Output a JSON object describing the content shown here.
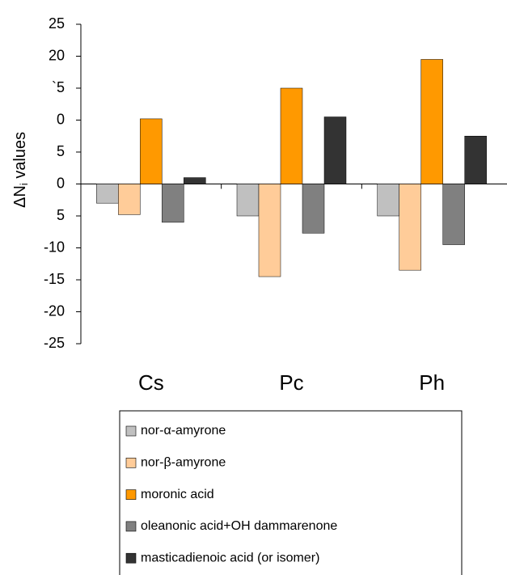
{
  "chart_data": {
    "type": "bar",
    "y_label": {
      "main": "ΔN",
      "sub": "i",
      "rest": " values"
    },
    "categories": [
      "Cs",
      "Pc",
      "Ph"
    ],
    "series": [
      {
        "name": "nor-α-amyrone",
        "color": "#c0c0c0",
        "values": [
          -3,
          -5,
          -5
        ]
      },
      {
        "name": "nor-β-amyrone",
        "color": "#ffcc99",
        "values": [
          -4.8,
          -14.5,
          -13.5
        ]
      },
      {
        "name": "moronic acid",
        "color": "#ff9900",
        "values": [
          10.2,
          15,
          19.5
        ]
      },
      {
        "name": "oleanonic acid+OH dammarenone",
        "color": "#808080",
        "values": [
          -6,
          -7.7,
          -9.5
        ]
      },
      {
        "name": "masticadienoic acid (or isomer)",
        "color": "#333333",
        "values": [
          1,
          10.5,
          7.5
        ]
      }
    ],
    "ylim": [
      -25,
      25
    ],
    "yticks": [
      25,
      20,
      {
        "value": 15,
        "label": "`5"
      },
      {
        "value": 10,
        "label": "0"
      },
      5,
      0,
      {
        "value": -5,
        "label": "5"
      },
      -10,
      -15,
      -20,
      -25
    ]
  }
}
